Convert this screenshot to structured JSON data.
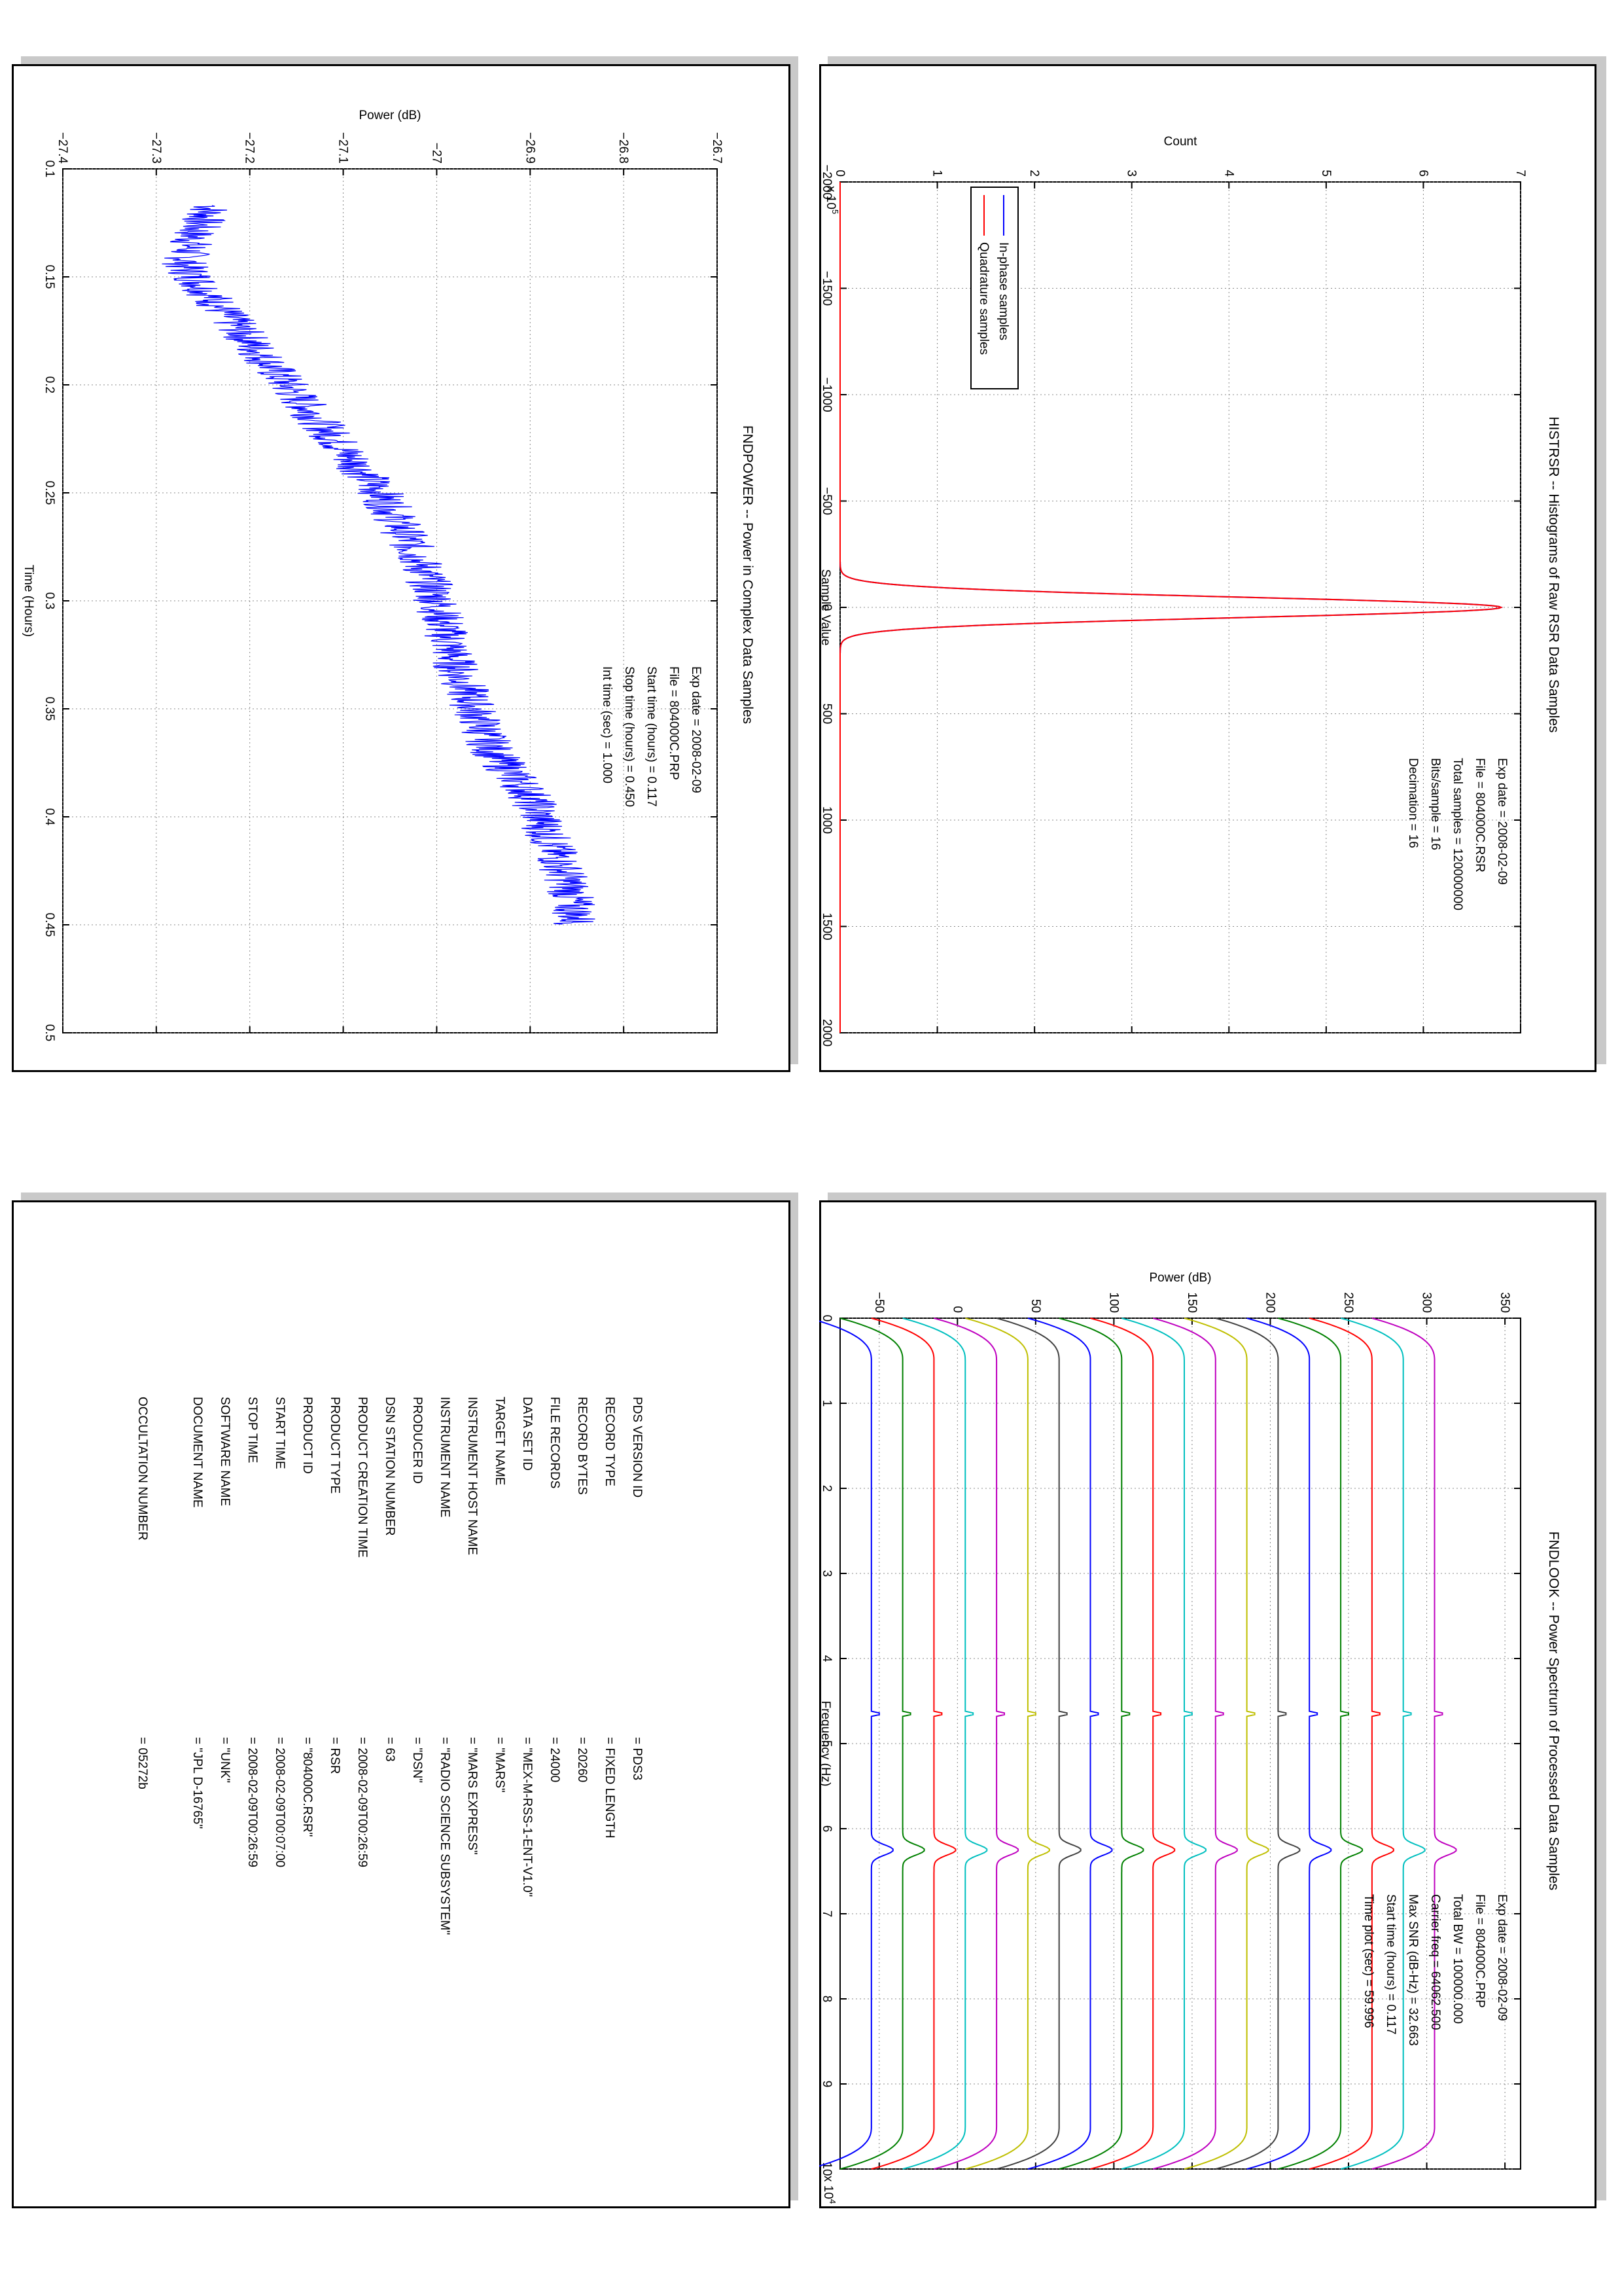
{
  "chart_data": [
    {
      "type": "line",
      "title": "HISTRSR -- Histograms of Raw RSR Data Samples",
      "xlabel": "Sample Value",
      "ylabel": "Count",
      "y_exponent": "x 10^5",
      "y_exponent_base": "x 10",
      "y_exponent_power": "5",
      "xlim": [
        -2000,
        2000
      ],
      "ylim": [
        0,
        7
      ],
      "xticks": [
        -2000,
        -1500,
        -1000,
        -500,
        0,
        500,
        1000,
        1500,
        2000
      ],
      "yticks": [
        0,
        1,
        2,
        3,
        4,
        5,
        6,
        7
      ],
      "grid": true,
      "legend_position": "top-left",
      "series": [
        {
          "name": "In-phase samples",
          "color": "#0000ff",
          "peak_x": 0,
          "peak_y": 6.8,
          "sigma": 48
        },
        {
          "name": "Quadrature samples",
          "color": "#ff0000",
          "peak_x": 0,
          "peak_y": 6.8,
          "sigma": 48
        }
      ],
      "annotations": [
        "Exp date = 2008-02-09",
        "File = 804000C.RSR",
        "Total samples =  120000000",
        "Bits/sample   =       16",
        "Decimation    =       16"
      ]
    },
    {
      "type": "line",
      "title": "FNDPOWER -- Power in Complex Data Samples",
      "xlabel": "Time (Hours)",
      "ylabel": "Power (dB)",
      "xlim": [
        0.1,
        0.5
      ],
      "ylim": [
        -27.4,
        -26.7
      ],
      "xticks": [
        0.1,
        0.15,
        0.2,
        0.25,
        0.3,
        0.35,
        0.4,
        0.45,
        0.5
      ],
      "yticks": [
        -27.4,
        -27.3,
        -27.2,
        -27.1,
        -27,
        -26.9,
        -26.8,
        -26.7
      ],
      "grid": true,
      "series": [
        {
          "name": "",
          "color": "#0000ff",
          "x": [
            0.117,
            0.13,
            0.145,
            0.16,
            0.18,
            0.2,
            0.22,
            0.25,
            0.28,
            0.3,
            0.33,
            0.35,
            0.37,
            0.39,
            0.41,
            0.43,
            0.45
          ],
          "y": [
            -27.24,
            -27.26,
            -27.27,
            -27.24,
            -27.2,
            -27.16,
            -27.12,
            -27.06,
            -27.02,
            -27.0,
            -26.98,
            -26.96,
            -26.94,
            -26.9,
            -26.88,
            -26.86,
            -26.85
          ]
        }
      ],
      "annotations": [
        "Exp date = 2008-02-09",
        "File = 804000C.PRP",
        "Start time (hours) = 0.117",
        "Stop time (hours) =  0.450",
        "Int time (sec) =     1.000"
      ]
    },
    {
      "type": "line",
      "title": "FNDLOOK -- Power Spectrum of Processed Data Samples",
      "xlabel": "Frequency (Hz)",
      "ylabel": "Power (dB)",
      "x_exponent": "x 10^4",
      "x_exponent_base": "x 10",
      "x_exponent_power": "4",
      "xlim": [
        0,
        10
      ],
      "ylim": [
        -75,
        360
      ],
      "xticks": [
        0,
        1,
        2,
        3,
        4,
        5,
        6,
        7,
        8,
        9,
        10
      ],
      "yticks": [
        -50,
        0,
        50,
        100,
        150,
        200,
        250,
        300,
        350
      ],
      "grid": true,
      "series": [
        {
          "name": "",
          "color": "#0000ff",
          "offset": -60
        },
        {
          "name": "",
          "color": "#008000",
          "offset": -40
        },
        {
          "name": "",
          "color": "#ff0000",
          "offset": -20
        },
        {
          "name": "",
          "color": "#00bfbf",
          "offset": 0
        },
        {
          "name": "",
          "color": "#bf00bf",
          "offset": 20
        },
        {
          "name": "",
          "color": "#bfbf00",
          "offset": 40
        },
        {
          "name": "",
          "color": "#404040",
          "offset": 60
        },
        {
          "name": "",
          "color": "#0000ff",
          "offset": 80
        },
        {
          "name": "",
          "color": "#008000",
          "offset": 100
        },
        {
          "name": "",
          "color": "#ff0000",
          "offset": 120
        },
        {
          "name": "",
          "color": "#00bfbf",
          "offset": 140
        },
        {
          "name": "",
          "color": "#bf00bf",
          "offset": 160
        },
        {
          "name": "",
          "color": "#bfbf00",
          "offset": 180
        },
        {
          "name": "",
          "color": "#404040",
          "offset": 200
        },
        {
          "name": "",
          "color": "#0000ff",
          "offset": 220
        },
        {
          "name": "",
          "color": "#008000",
          "offset": 240
        },
        {
          "name": "",
          "color": "#ff0000",
          "offset": 260
        },
        {
          "name": "",
          "color": "#00bfbf",
          "offset": 280
        },
        {
          "name": "",
          "color": "#bf00bf",
          "offset": 300
        }
      ],
      "annotations": [
        "Exp date = 2008-02-09",
        "File = 804000C.PRP",
        "Total BW =    100000.000",
        "Carrier freq =   64062.500",
        "Max SNR (dB-Hz) =     32.663",
        "Start time (hours) =    0.117",
        "Time plot (sec) =     59.996"
      ]
    }
  ],
  "pds_label": {
    "rows": [
      {
        "key": "PDS VERSION ID",
        "value": "=  PDS3"
      },
      {
        "key": "RECORD TYPE",
        "value": "=  FIXED LENGTH"
      },
      {
        "key": "RECORD BYTES",
        "value": "=  20260"
      },
      {
        "key": "FILE RECORDS",
        "value": "=  24000"
      },
      {
        "key": "DATA SET ID",
        "value": "=  \"MEX-M-RSS-1-ENT-V1.0\""
      },
      {
        "key": "TARGET NAME",
        "value": "=  \"MARS\""
      },
      {
        "key": "INSTRUMENT HOST NAME",
        "value": "=  \"MARS EXPRESS\""
      },
      {
        "key": "INSTRUMENT NAME",
        "value": "=  \"RADIO SCIENCE SUBSYSTEM\""
      },
      {
        "key": "PRODUCER ID",
        "value": "=  \"DSN\""
      },
      {
        "key": "DSN STATION NUMBER",
        "value": "=  63"
      },
      {
        "key": "PRODUCT CREATION TIME",
        "value": "=  2008-02-09T00:26:59"
      },
      {
        "key": "PRODUCT TYPE",
        "value": "=  RSR"
      },
      {
        "key": "PRODUCT ID",
        "value": "=  \"804000C.RSR\""
      },
      {
        "key": "START TIME",
        "value": "=  2008-02-09T00:07:00"
      },
      {
        "key": "STOP TIME",
        "value": "=  2008-02-09T00:26:59"
      },
      {
        "key": "SOFTWARE NAME",
        "value": "=  \"UNK\""
      },
      {
        "key": "DOCUMENT NAME",
        "value": "=  \"JPL D-16765\""
      },
      {
        "key": "",
        "value": ""
      },
      {
        "key": "OCCULTATION NUMBER",
        "value": "=  05272b"
      }
    ]
  }
}
